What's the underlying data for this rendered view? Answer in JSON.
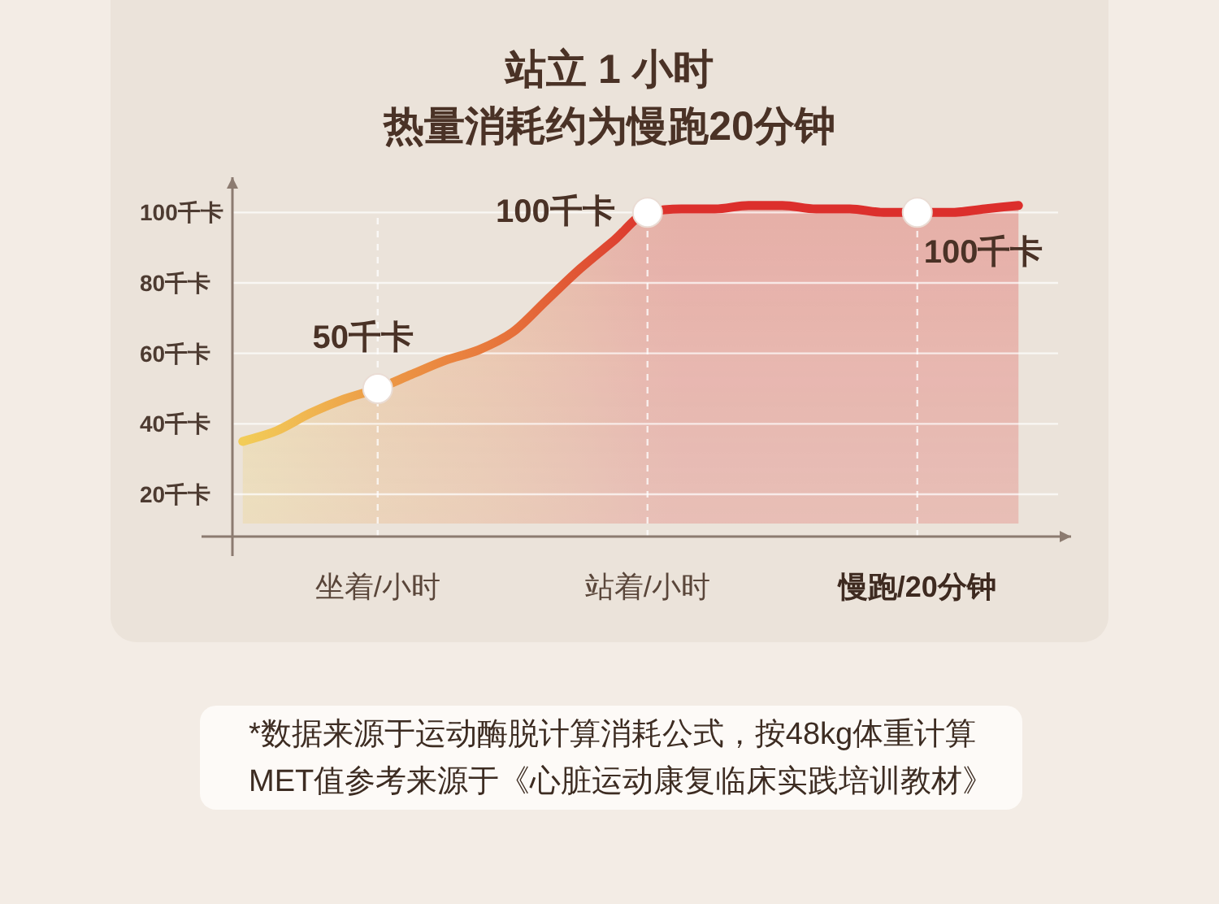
{
  "chart_data": {
    "type": "area",
    "title": "站立 1 小时",
    "subtitle": "热量消耗约为慢跑20分钟",
    "categories": [
      null,
      null,
      null,
      null,
      "坐着/小时",
      null,
      null,
      null,
      null,
      null,
      null,
      null,
      "站着/小时",
      null,
      null,
      null,
      null,
      null,
      null,
      null,
      "慢跑/20分钟",
      null,
      null,
      null
    ],
    "ylim": [
      8,
      110
    ],
    "yticks": [
      {
        "value": 20,
        "label": "20千卡"
      },
      {
        "value": 40,
        "label": "40千卡"
      },
      {
        "value": 60,
        "label": "60千卡"
      },
      {
        "value": 80,
        "label": "80千卡"
      },
      {
        "value": 100,
        "label": "100千卡"
      }
    ],
    "grid": true,
    "series": [
      {
        "type": "area",
        "values": [
          35,
          38,
          43,
          47,
          50,
          54,
          58,
          61,
          66,
          75,
          84,
          92,
          100,
          101,
          101,
          102,
          102,
          101,
          101,
          100,
          100,
          100,
          101,
          102
        ],
        "colors": [
          "#f2cc58",
          "#f1c154",
          "#f0b550",
          "#eea84b",
          "#ec9a46",
          "#eb9043",
          "#ea8640",
          "#e87c3d",
          "#e6703a",
          "#e36237",
          "#e05434",
          "#de4431",
          "#dc362e",
          "#dc2f2c",
          "#dc2f2c",
          "#dc2f2c",
          "#dc2f2c",
          "#dc2f2c",
          "#dc2f2c",
          "#dc2f2c",
          "#dc2f2c",
          "#dc2f2c",
          "#dc2f2c",
          "#dc2f2c"
        ]
      },
      {
        "type": "scatter",
        "values": [
          null,
          null,
          null,
          null,
          50,
          null,
          null,
          null,
          null,
          null,
          null,
          null,
          100,
          null,
          null,
          null,
          null,
          null,
          null,
          null,
          100,
          null,
          null,
          null
        ],
        "color": "#ffffff",
        "marker": "circle",
        "value_labels": [
          null,
          null,
          null,
          null,
          "50千卡",
          null,
          null,
          null,
          null,
          null,
          null,
          null,
          "100千卡",
          null,
          null,
          null,
          null,
          null,
          null,
          null,
          "100千卡",
          null,
          null,
          null
        ]
      }
    ],
    "annotations": [
      "*数据来源于运动酶脱计算消耗公式，按48kg体重计算",
      "MET值参考来源于《心脏运动康复临床实践培训教材》"
    ]
  }
}
